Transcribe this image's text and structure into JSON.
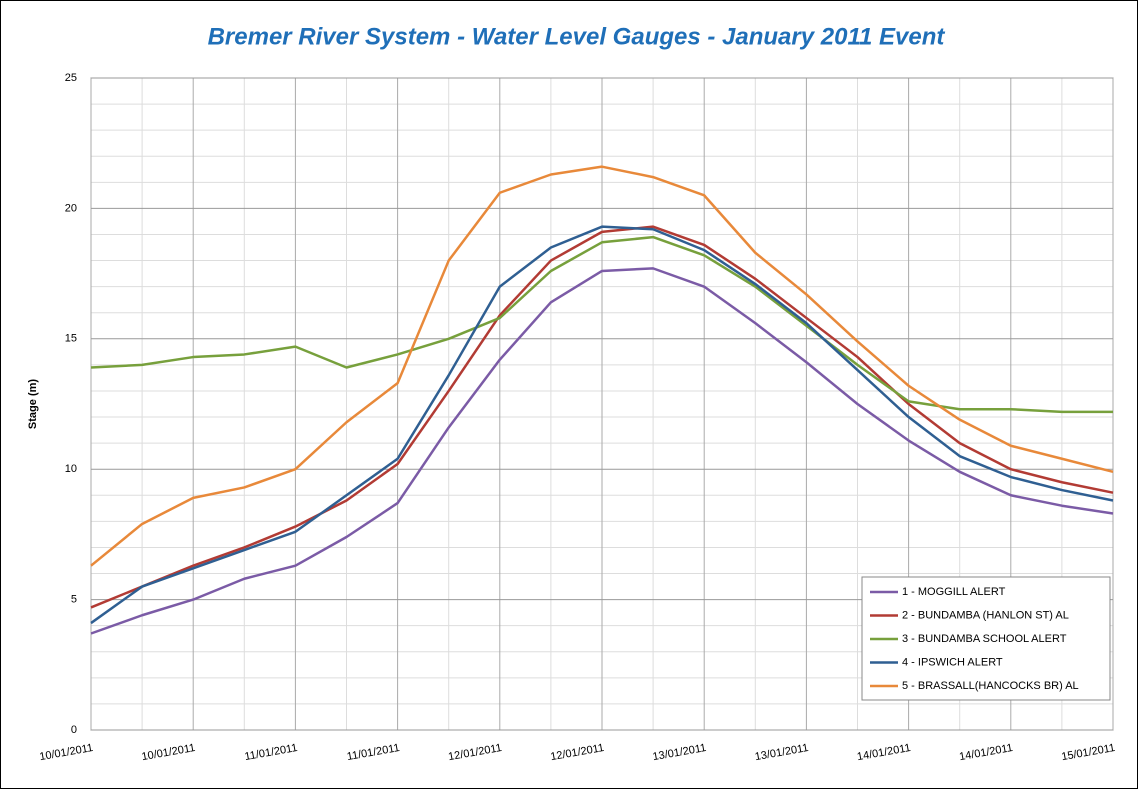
{
  "chart_data": {
    "type": "line",
    "title": "Bremer River System - Water Level Gauges - January 2011 Event",
    "y_label": "Stage (m)",
    "categories": [
      "10/01/2011",
      null,
      "10/01/2011",
      null,
      "11/01/2011",
      null,
      "11/01/2011",
      null,
      "12/01/2011",
      null,
      "12/01/2011",
      null,
      "13/01/2011",
      null,
      "13/01/2011",
      null,
      "14/01/2011",
      null,
      "14/01/2011",
      null,
      "15/01/2011"
    ],
    "series": [
      {
        "name": "1 - MOGGILL ALERT",
        "color": "#7b5ba6",
        "values": [
          3.7,
          4.4,
          5.0,
          5.8,
          6.3,
          7.4,
          8.7,
          11.6,
          14.2,
          16.4,
          17.6,
          17.7,
          17.0,
          15.6,
          14.1,
          12.5,
          11.1,
          9.9,
          9.0,
          8.6,
          8.3
        ]
      },
      {
        "name": "2 - BUNDAMBA (HANLON ST) AL",
        "color": "#b23b34",
        "values": [
          4.7,
          5.5,
          6.3,
          7.0,
          7.8,
          8.8,
          10.2,
          13.0,
          15.9,
          18.0,
          19.1,
          19.3,
          18.6,
          17.3,
          15.8,
          14.3,
          12.5,
          11.0,
          10.0,
          9.5,
          9.1
        ]
      },
      {
        "name": "3 - BUNDAMBA SCHOOL ALERT",
        "color": "#77a03c",
        "values": [
          13.9,
          14.0,
          14.3,
          14.4,
          14.7,
          13.9,
          14.4,
          15.0,
          15.8,
          17.6,
          18.7,
          18.9,
          18.2,
          17.0,
          15.5,
          14.0,
          12.6,
          12.3,
          12.3,
          12.2,
          12.2
        ]
      },
      {
        "name": "4 - IPSWICH ALERT",
        "color": "#2f5f92",
        "values": [
          4.1,
          5.5,
          6.2,
          6.9,
          7.6,
          9.0,
          10.4,
          13.6,
          17.0,
          18.5,
          19.3,
          19.2,
          18.4,
          17.1,
          15.6,
          13.8,
          12.0,
          10.5,
          9.7,
          9.2,
          8.8
        ]
      },
      {
        "name": "5 - BRASSALL(HANCOCKS BR) AL",
        "color": "#e8893a",
        "values": [
          6.3,
          7.9,
          8.9,
          9.3,
          10.0,
          11.8,
          13.3,
          18.0,
          20.6,
          21.3,
          21.6,
          21.2,
          20.5,
          18.3,
          16.7,
          14.9,
          13.2,
          11.9,
          10.9,
          10.4,
          9.9
        ]
      }
    ],
    "ylim": [
      0,
      25
    ],
    "yticks": [
      0,
      5,
      10,
      15,
      20,
      25
    ],
    "grid": true,
    "legend": "lower right"
  }
}
